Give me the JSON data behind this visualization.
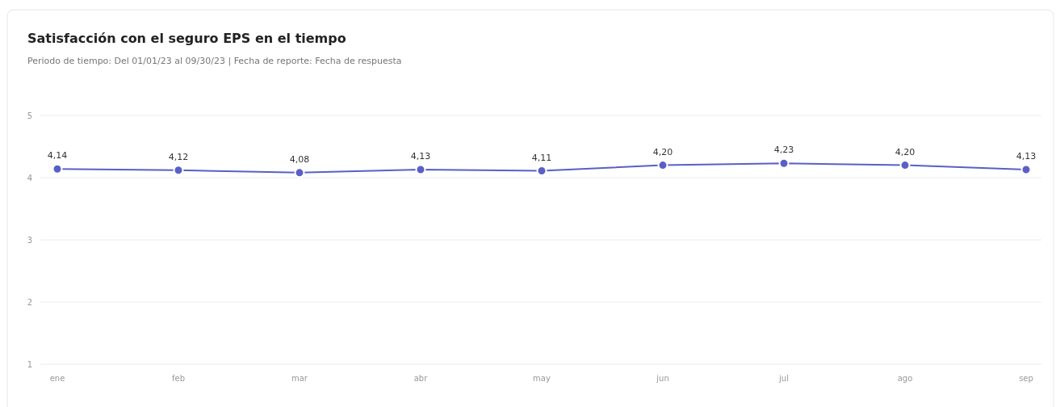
{
  "chart_data": {
    "type": "line",
    "title": "Satisfacción con el seguro EPS en el tiempo",
    "subtitle": "Periodo de tiempo: Del 01/01/23 al 09/30/23 | Fecha de reporte: Fecha de respuesta",
    "categories": [
      "ene",
      "feb",
      "mar",
      "abr",
      "may",
      "jun",
      "jul",
      "ago",
      "sep"
    ],
    "series": [
      {
        "color": "#5a5fc8",
        "values": [
          4.14,
          4.12,
          4.08,
          4.13,
          4.11,
          4.2,
          4.23,
          4.2,
          4.13
        ],
        "value_labels": [
          "4,14",
          "4,12",
          "4,08",
          "4,13",
          "4,11",
          "4,20",
          "4,23",
          "4,20",
          "4,13"
        ]
      }
    ],
    "ylim": [
      1,
      5
    ],
    "yticks": [
      1,
      2,
      3,
      4,
      5
    ],
    "grid": "y",
    "marker": "circle",
    "line_style": "solid"
  }
}
